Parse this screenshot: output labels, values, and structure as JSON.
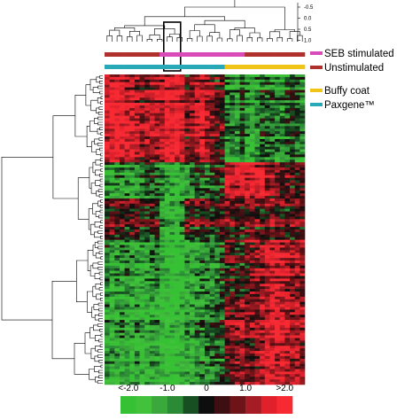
{
  "chart_data": {
    "type": "heatmap",
    "title": "",
    "correlation_axis": {
      "ticks": [
        "-0.5",
        "0.0",
        "0.5",
        "1.0"
      ],
      "values": [
        -0.5,
        0.0,
        0.5,
        1.0
      ]
    },
    "sample_groups": {
      "stimulation": [
        "Unstimulated",
        "Unstimulated",
        "Unstimulated",
        "Unstimulated",
        "Unstimulated",
        "Unstimulated",
        "Unstimulated",
        "Unstimulated",
        "Unstimulated",
        "Unstimulated",
        "Unstimulated",
        "SEB stimulated",
        "SEB stimulated",
        "SEB stimulated",
        "SEB stimulated",
        "SEB stimulated",
        "SEB stimulated",
        "SEB stimulated",
        "SEB stimulated",
        "SEB stimulated",
        "SEB stimulated",
        "SEB stimulated",
        "SEB stimulated",
        "SEB stimulated",
        "SEB stimulated",
        "SEB stimulated",
        "SEB stimulated",
        "SEB stimulated",
        "Unstimulated",
        "Unstimulated",
        "Unstimulated",
        "Unstimulated",
        "Unstimulated",
        "Unstimulated",
        "Unstimulated",
        "Unstimulated",
        "Unstimulated",
        "Unstimulated",
        "Unstimulated",
        "Unstimulated"
      ],
      "sample_type": [
        "Paxgene™",
        "Paxgene™",
        "Paxgene™",
        "Paxgene™",
        "Paxgene™",
        "Paxgene™",
        "Paxgene™",
        "Paxgene™",
        "Paxgene™",
        "Paxgene™",
        "Paxgene™",
        "Paxgene™",
        "Paxgene™",
        "Paxgene™",
        "Paxgene™",
        "Paxgene™",
        "Paxgene™",
        "Paxgene™",
        "Paxgene™",
        "Paxgene™",
        "Paxgene™",
        "Paxgene™",
        "Paxgene™",
        "Paxgene™",
        "Buffy coat",
        "Buffy coat",
        "Buffy coat",
        "Buffy coat",
        "Buffy coat",
        "Buffy coat",
        "Buffy coat",
        "Buffy coat",
        "Buffy coat",
        "Buffy coat",
        "Buffy coat",
        "Buffy coat",
        "Buffy coat",
        "Buffy coat",
        "Buffy coat",
        "Buffy coat"
      ]
    },
    "legend": [
      {
        "label": "SEB stimulated",
        "color": "#d94bb8"
      },
      {
        "label": "Unstimulated",
        "color": "#b0302b"
      },
      {
        "label": "Buffy coat",
        "color": "#f0c419"
      },
      {
        "label": "Paxgene™",
        "color": "#29a9b8"
      }
    ],
    "color_scale": {
      "tick_labels": [
        "<-2.0",
        "-1.0",
        "0",
        "1.0",
        ">2.0"
      ],
      "tick_values": [
        -2.0,
        -1.0,
        0.0,
        1.0,
        2.0
      ],
      "steps": [
        -2.0,
        -1.6,
        -1.2,
        -0.8,
        -0.4,
        0.0,
        0.4,
        0.8,
        1.2,
        1.6,
        2.0
      ],
      "colors": [
        "#35c133",
        "#41c23a",
        "#3aa83a",
        "#2b8a36",
        "#184f22",
        "#0e0e0e",
        "#3d0f12",
        "#6e1318",
        "#a51c24",
        "#e0212c",
        "#f72a33"
      ]
    },
    "clusters": [
      {
        "genes_from": 0.0,
        "genes_to": 0.28,
        "column_levels": [
          1.6,
          1.8,
          1.8,
          1.7,
          1.5,
          1.4,
          1.2,
          0.9,
          1.1,
          1.2,
          1.0,
          1.2,
          1.6,
          1.8,
          2.0,
          1.6,
          0.6,
          0.8,
          1.3,
          1.5,
          1.1,
          0.9,
          0.4,
          0.3,
          -0.9,
          -1.0,
          -1.2,
          -0.6,
          -1.3,
          -1.4,
          -1.0,
          -0.5,
          -0.8,
          -0.7,
          -0.9,
          -1.1,
          -0.6,
          -0.4,
          -0.7,
          -1.0
        ]
      },
      {
        "genes_from": 0.28,
        "genes_to": 0.4,
        "column_levels": [
          -1.2,
          -1.3,
          -1.0,
          -1.1,
          -0.9,
          -1.2,
          -1.0,
          -0.8,
          -0.6,
          -0.4,
          -0.5,
          -0.9,
          -1.1,
          -1.4,
          -1.6,
          -1.3,
          -1.0,
          -0.7,
          -0.5,
          -0.3,
          -0.4,
          -0.6,
          -0.2,
          0.0,
          1.4,
          1.5,
          1.6,
          1.8,
          1.6,
          1.4,
          1.5,
          1.7,
          1.2,
          0.9,
          0.6,
          0.4,
          0.7,
          0.5,
          0.3,
          0.4
        ]
      },
      {
        "genes_from": 0.4,
        "genes_to": 0.53,
        "column_levels": [
          0.4,
          0.6,
          0.5,
          0.3,
          0.2,
          0.4,
          0.5,
          0.3,
          0.1,
          0.2,
          0.3,
          -1.2,
          -1.4,
          -1.3,
          -1.5,
          -1.2,
          0.5,
          0.6,
          0.3,
          0.2,
          0.4,
          0.1,
          0.0,
          0.2,
          0.6,
          0.4,
          0.5,
          0.3,
          0.7,
          0.9,
          0.6,
          0.4,
          0.6,
          0.8,
          0.7,
          0.5,
          0.3,
          0.6,
          0.4,
          0.5
        ]
      },
      {
        "genes_from": 0.53,
        "genes_to": 0.72,
        "column_levels": [
          -0.8,
          -1.0,
          -1.2,
          -1.1,
          -0.9,
          -1.2,
          -1.3,
          -1.4,
          -1.2,
          -1.0,
          -0.9,
          -1.6,
          -1.8,
          -2.0,
          -2.0,
          -1.7,
          -1.3,
          -1.4,
          -1.2,
          -1.0,
          -0.8,
          -0.9,
          -0.7,
          -0.5,
          0.1,
          0.3,
          0.0,
          -0.1,
          0.4,
          0.6,
          0.8,
          1.0,
          1.3,
          1.5,
          1.6,
          1.4,
          1.2,
          1.0,
          1.1,
          0.9
        ]
      },
      {
        "genes_from": 0.72,
        "genes_to": 1.0,
        "column_levels": [
          -1.0,
          -1.2,
          -1.1,
          -0.9,
          -1.3,
          -1.4,
          -1.2,
          -1.5,
          -1.3,
          -1.1,
          -1.0,
          -1.6,
          -1.7,
          -1.8,
          -1.5,
          -1.4,
          -1.1,
          -1.3,
          -1.0,
          -0.9,
          -0.7,
          -0.6,
          -0.4,
          -0.3,
          0.6,
          0.8,
          1.0,
          1.1,
          0.9,
          0.8,
          1.0,
          1.3,
          1.5,
          1.7,
          1.6,
          1.8,
          1.4,
          1.2,
          1.3,
          1.1
        ]
      }
    ],
    "highlighted_samples": [
      12,
      13,
      14
    ],
    "n_samples": 40,
    "n_gene_rows": 120
  }
}
